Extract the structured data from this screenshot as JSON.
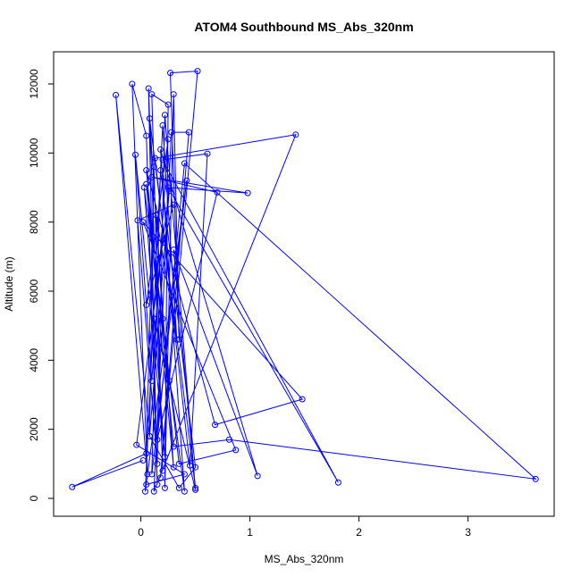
{
  "chart_data": {
    "type": "line",
    "title": "ATOM4 Southbound MS_Abs_320nm",
    "xlabel": "MS_Abs_320nm",
    "ylabel": "Altitude (m)",
    "color": "#0000ff",
    "markers": true,
    "x": [
      0.02,
      -0.63,
      0.05,
      0.12,
      0.08,
      -0.23,
      0.06,
      -0.08,
      0.05,
      0.15,
      0.07,
      0.2,
      0.1,
      0.25,
      0.22,
      0.3,
      0.35,
      0.27,
      0.52,
      0.18,
      0.44,
      0.28,
      0.12,
      1.42,
      0.13,
      0.45,
      0.61,
      0.2,
      1.81,
      0.25,
      0.98,
      0.1,
      0.7,
      0.15,
      0.4,
      3.62,
      0.81,
      0.3,
      0.05,
      0.68,
      1.48,
      0.02,
      0.87,
      0.35,
      0.2,
      0.08,
      0.5,
      0.3,
      1.07,
      0.18,
      0.4,
      0.03,
      0.22,
      -0.05,
      0.1,
      0.25,
      0.05,
      0.3,
      -0.03,
      0.15,
      0.22,
      0.5,
      0.12,
      0.26,
      0.05,
      0.3,
      0.14,
      0.33,
      0.2,
      0.04,
      0.42,
      0.1,
      0.18,
      0.5,
      0.35,
      0.08,
      0.26,
      -0.04,
      0.4,
      0.05
    ],
    "y": [
      1100,
      330,
      1300,
      9600,
      1800,
      11680,
      700,
      12000,
      10500,
      400,
      11870,
      800,
      11700,
      11400,
      300,
      11700,
      4600,
      12320,
      12370,
      600,
      10600,
      10600,
      200,
      10530,
      9850,
      950,
      9980,
      9800,
      460,
      9000,
      8840,
      9300,
      8860,
      1700,
      9700,
      560,
      1700,
      1500,
      9500,
      2130,
      2870,
      8000,
      1400,
      1000,
      5200,
      11000,
      300,
      7200,
      650,
      10100,
      200,
      9000,
      1200,
      9950,
      3400,
      10400,
      5600,
      8500,
      8050,
      1000,
      11100,
      250,
      5200,
      3400,
      9100,
      900,
      8200,
      4600,
      10800,
      200,
      9200,
      700,
      9500,
      900,
      300,
      1800,
      8900,
      1550,
      700,
      400
    ],
    "xlim": [
      -0.8,
      3.79
    ],
    "ylim": [
      -517,
      12930
    ],
    "xticks": [
      0,
      1,
      2,
      3
    ],
    "yticks": [
      0,
      2000,
      4000,
      6000,
      8000,
      10000,
      12000
    ]
  }
}
